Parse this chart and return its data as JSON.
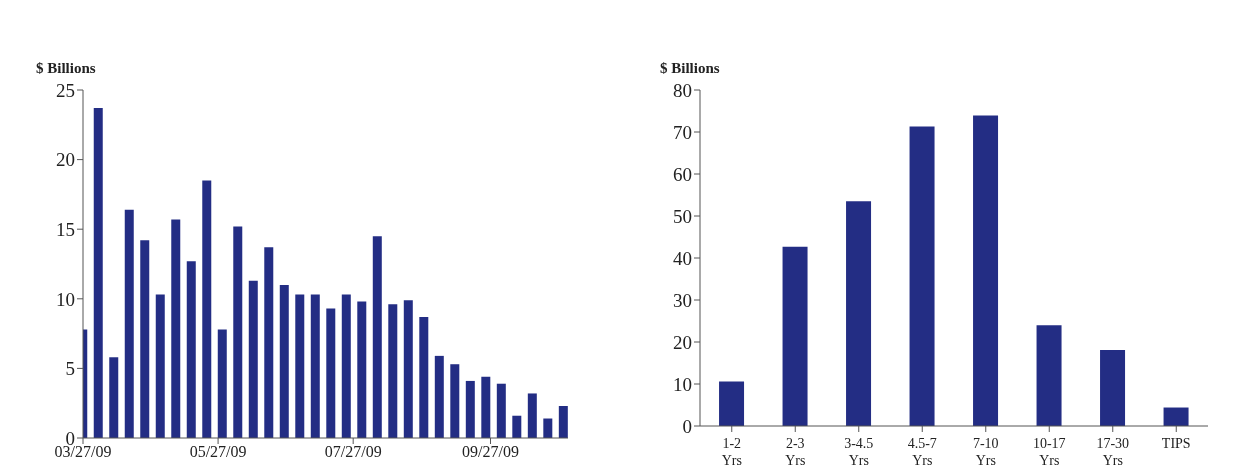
{
  "chart_data": [
    {
      "type": "bar",
      "ylabel": "$ Billions",
      "color": "#232d84",
      "x": [
        "2009-03-27",
        "2009-04-03",
        "2009-04-10",
        "2009-04-17",
        "2009-04-24",
        "2009-05-01",
        "2009-05-08",
        "2009-05-15",
        "2009-05-22",
        "2009-05-29",
        "2009-06-05",
        "2009-06-12",
        "2009-06-19",
        "2009-06-26",
        "2009-07-03",
        "2009-07-10",
        "2009-07-17",
        "2009-07-24",
        "2009-07-31",
        "2009-08-07",
        "2009-08-14",
        "2009-08-21",
        "2009-08-28",
        "2009-09-04",
        "2009-09-11",
        "2009-09-18",
        "2009-09-25",
        "2009-10-02",
        "2009-10-09",
        "2009-10-16",
        "2009-10-23",
        "2009-10-30"
      ],
      "values": [
        7.8,
        23.7,
        5.8,
        16.4,
        14.2,
        10.3,
        15.7,
        12.7,
        18.5,
        7.8,
        15.2,
        11.3,
        13.7,
        11.0,
        10.3,
        10.3,
        9.3,
        10.3,
        9.8,
        14.5,
        9.6,
        9.9,
        8.7,
        5.9,
        5.3,
        4.1,
        4.4,
        3.9,
        1.6,
        3.2,
        1.4,
        2.3
      ],
      "xlim": [
        "2009-03-27",
        "2009-11-01"
      ],
      "xticks": [
        {
          "value": "2009-03-27",
          "label": "03/27/09"
        },
        {
          "value": "2009-05-27",
          "label": "05/27/09"
        },
        {
          "value": "2009-07-27",
          "label": "07/27/09"
        },
        {
          "value": "2009-09-27",
          "label": "09/27/09"
        }
      ],
      "ylim": [
        0,
        25
      ],
      "yticks": [
        0,
        5,
        10,
        15,
        20,
        25
      ]
    },
    {
      "type": "bar",
      "ylabel": "$ Billions",
      "color": "#232d84",
      "categories": [
        "1-2 Yrs",
        "2-3 Yrs",
        "3-4.5 Yrs",
        "4.5-7 Yrs",
        "7-10 Yrs",
        "10-17 Yrs",
        "17-30 Yrs",
        "TIPS"
      ],
      "values": [
        10.6,
        42.7,
        53.5,
        71.3,
        73.9,
        24.0,
        18.1,
        4.4
      ],
      "ylim": [
        0,
        80
      ],
      "yticks": [
        0,
        10,
        20,
        30,
        40,
        50,
        60,
        70,
        80
      ]
    }
  ]
}
